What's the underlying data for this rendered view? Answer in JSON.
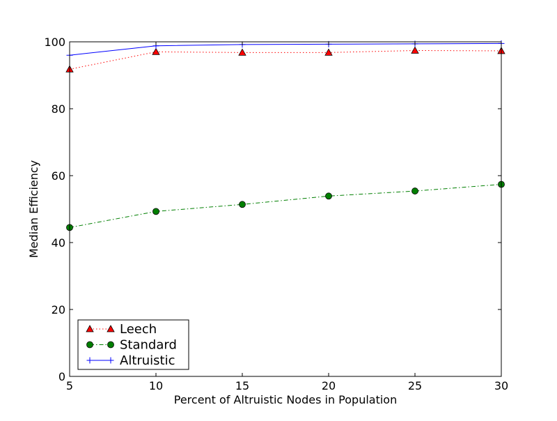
{
  "chart_data": {
    "type": "line",
    "title": "",
    "xlabel": "Percent of Altruistic Nodes in Population",
    "ylabel": "Median Efficiency",
    "xlim": [
      5,
      30
    ],
    "ylim": [
      0,
      100
    ],
    "xticks": [
      5,
      10,
      15,
      20,
      25,
      30
    ],
    "yticks": [
      0,
      20,
      40,
      60,
      80,
      100
    ],
    "grid": false,
    "legend_position": "lower-left",
    "x": [
      5,
      10,
      15,
      20,
      25,
      30
    ],
    "series": [
      {
        "name": "Leech",
        "values": [
          91.8,
          97.0,
          96.8,
          96.8,
          97.4,
          97.3
        ],
        "color": "#ff0000",
        "marker": "triangle",
        "marker_fill": "#ff0000",
        "linestyle": "dotted"
      },
      {
        "name": "Standard",
        "values": [
          44.5,
          49.3,
          51.4,
          53.9,
          55.4,
          57.4
        ],
        "color": "#007f00",
        "marker": "circle",
        "marker_fill": "#007f00",
        "linestyle": "dashdot"
      },
      {
        "name": "Altruistic",
        "values": [
          96.0,
          98.8,
          99.2,
          99.3,
          99.4,
          99.5
        ],
        "color": "#0000ff",
        "marker": "plus",
        "marker_fill": "#0000ff",
        "linestyle": "solid"
      }
    ]
  }
}
